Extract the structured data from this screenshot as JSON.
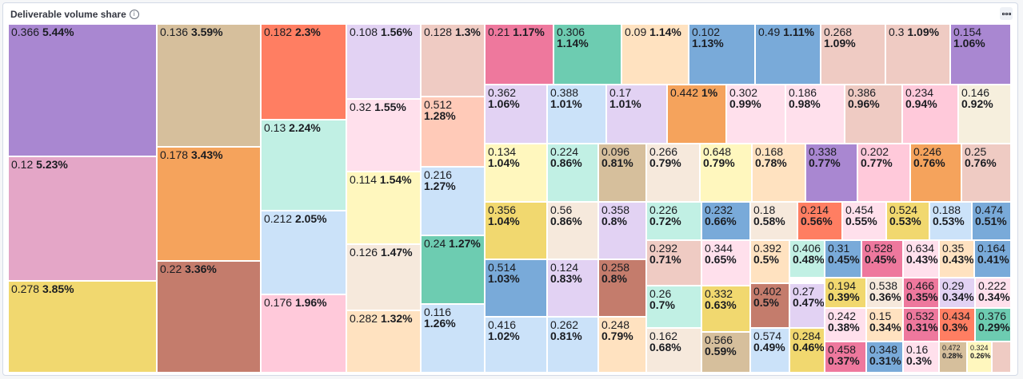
{
  "panel": {
    "title": "Deliverable volume share",
    "info_icon": "info-icon",
    "options_icon": "panel-options-icon"
  },
  "chart_data": {
    "type": "treemap",
    "title": "Deliverable volume share",
    "tiles": [
      {
        "value": "0.366",
        "pct": "5.44%",
        "color": "#a987d1"
      },
      {
        "value": "0.12",
        "pct": "5.23%",
        "color": "#e4a6c7"
      },
      {
        "value": "0.278",
        "pct": "3.85%",
        "color": "#f1d86f"
      },
      {
        "value": "0.136",
        "pct": "3.59%",
        "color": "#d6bf9c"
      },
      {
        "value": "0.178",
        "pct": "3.43%",
        "color": "#f5a35c"
      },
      {
        "value": "0.22",
        "pct": "3.36%",
        "color": "#c47c6c"
      },
      {
        "value": "0.182",
        "pct": "2.3%",
        "color": "#ff7e62"
      },
      {
        "value": "0.13",
        "pct": "2.24%",
        "color": "#c1f0e4"
      },
      {
        "value": "0.212",
        "pct": "2.05%",
        "color": "#cbe2f9"
      },
      {
        "value": "0.176",
        "pct": "1.96%",
        "color": "#ffc9da"
      },
      {
        "value": "0.108",
        "pct": "1.56%",
        "color": "#e2d2f3"
      },
      {
        "value": "0.32",
        "pct": "1.55%",
        "color": "#ffe0ec"
      },
      {
        "value": "0.114",
        "pct": "1.54%",
        "color": "#fff7be"
      },
      {
        "value": "0.126",
        "pct": "1.47%",
        "color": "#f6e9dc"
      },
      {
        "value": "0.282",
        "pct": "1.32%",
        "color": "#ffe2c0"
      },
      {
        "value": "0.128",
        "pct": "1.3%",
        "color": "#efcbc3"
      },
      {
        "value": "0.512",
        "pct": "1.28%",
        "color": "#ffcab8"
      },
      {
        "value": "0.216",
        "pct": "1.27%",
        "color": "#cbe2f9"
      },
      {
        "value": "0.24",
        "pct": "1.27%",
        "color": "#6dccb1"
      },
      {
        "value": "0.116",
        "pct": "1.26%",
        "color": "#cbe2f9"
      },
      {
        "value": "0.21",
        "pct": "1.17%",
        "color": "#ee789d"
      },
      {
        "value": "0.306",
        "pct": "1.14%",
        "color": "#6dccb1"
      },
      {
        "value": "0.09",
        "pct": "1.14%",
        "color": "#ffe2c0"
      },
      {
        "value": "0.102",
        "pct": "1.13%",
        "color": "#79aad9"
      },
      {
        "value": "0.49",
        "pct": "1.11%",
        "color": "#79aad9"
      },
      {
        "value": "0.268",
        "pct": "1.09%",
        "color": "#efcbc3"
      },
      {
        "value": "0.3",
        "pct": "1.09%",
        "color": "#efcbc3"
      },
      {
        "value": "0.154",
        "pct": "1.06%",
        "color": "#a987d1"
      },
      {
        "value": "0.362",
        "pct": "1.06%",
        "color": "#e2d2f3"
      },
      {
        "value": "0.388",
        "pct": "1.01%",
        "color": "#cbe2f9"
      },
      {
        "value": "0.17",
        "pct": "1.01%",
        "color": "#e2d2f3"
      },
      {
        "value": "0.442",
        "pct": "1%",
        "color": "#f5a35c"
      },
      {
        "value": "0.302",
        "pct": "0.99%",
        "color": "#ffe0ec"
      },
      {
        "value": "0.186",
        "pct": "0.98%",
        "color": "#ffe0ec"
      },
      {
        "value": "0.386",
        "pct": "0.96%",
        "color": "#efcbc3"
      },
      {
        "value": "0.234",
        "pct": "0.94%",
        "color": "#ffc9da"
      },
      {
        "value": "0.146",
        "pct": "0.92%",
        "color": "#f6efdd"
      },
      {
        "value": "0.134",
        "pct": "1.04%",
        "color": "#fff7be"
      },
      {
        "value": "0.224",
        "pct": "0.86%",
        "color": "#c1f0e4"
      },
      {
        "value": "0.096",
        "pct": "0.81%",
        "color": "#d6bf9c"
      },
      {
        "value": "0.266",
        "pct": "0.79%",
        "color": "#f6e9dc"
      },
      {
        "value": "0.648",
        "pct": "0.79%",
        "color": "#fff7be"
      },
      {
        "value": "0.168",
        "pct": "0.78%",
        "color": "#ffe2c0"
      },
      {
        "value": "0.338",
        "pct": "0.77%",
        "color": "#a987d1"
      },
      {
        "value": "0.202",
        "pct": "0.77%",
        "color": "#ffc9da"
      },
      {
        "value": "0.246",
        "pct": "0.76%",
        "color": "#f5a35c"
      },
      {
        "value": "0.25",
        "pct": "0.76%",
        "color": "#efcbc3"
      },
      {
        "value": "0.356",
        "pct": "1.04%",
        "color": "#f1d86f"
      },
      {
        "value": "0.56",
        "pct": "0.86%",
        "color": "#f6e9dc"
      },
      {
        "value": "0.358",
        "pct": "0.8%",
        "color": "#e2d2f3"
      },
      {
        "value": "0.226",
        "pct": "0.72%",
        "color": "#c1f0e4"
      },
      {
        "value": "0.232",
        "pct": "0.66%",
        "color": "#79aad9"
      },
      {
        "value": "0.18",
        "pct": "0.58%",
        "color": "#f6e9dc"
      },
      {
        "value": "0.214",
        "pct": "0.56%",
        "color": "#ff7e62"
      },
      {
        "value": "0.454",
        "pct": "0.55%",
        "color": "#ffe0ec"
      },
      {
        "value": "0.524",
        "pct": "0.53%",
        "color": "#f1d86f"
      },
      {
        "value": "0.188",
        "pct": "0.53%",
        "color": "#cbe2f9"
      },
      {
        "value": "0.474",
        "pct": "0.51%",
        "color": "#79aad9"
      },
      {
        "value": "0.514",
        "pct": "1.03%",
        "color": "#79aad9"
      },
      {
        "value": "0.124",
        "pct": "0.83%",
        "color": "#e2d2f3"
      },
      {
        "value": "0.258",
        "pct": "0.8%",
        "color": "#c47c6c"
      },
      {
        "value": "0.292",
        "pct": "0.71%",
        "color": "#efcbc3"
      },
      {
        "value": "0.344",
        "pct": "0.65%",
        "color": "#ffe0ec"
      },
      {
        "value": "0.392",
        "pct": "0.5%",
        "color": "#ffe2c0"
      },
      {
        "value": "0.406",
        "pct": "0.48%",
        "color": "#c1f0e4"
      },
      {
        "value": "0.31",
        "pct": "0.45%",
        "color": "#79aad9"
      },
      {
        "value": "0.528",
        "pct": "0.45%",
        "color": "#ee789d"
      },
      {
        "value": "0.634",
        "pct": "0.43%",
        "color": "#ffe0ec"
      },
      {
        "value": "0.35",
        "pct": "0.43%",
        "color": "#ffe2c0"
      },
      {
        "value": "0.164",
        "pct": "0.41%",
        "color": "#79aad9"
      },
      {
        "value": "0.416",
        "pct": "1.02%",
        "color": "#cbe2f9"
      },
      {
        "value": "0.262",
        "pct": "0.81%",
        "color": "#cbe2f9"
      },
      {
        "value": "0.248",
        "pct": "0.79%",
        "color": "#ffe2c0"
      },
      {
        "value": "0.26",
        "pct": "0.7%",
        "color": "#c1f0e4"
      },
      {
        "value": "0.332",
        "pct": "0.63%",
        "color": "#f1d86f"
      },
      {
        "value": "0.402",
        "pct": "0.5%",
        "color": "#c47c6c"
      },
      {
        "value": "0.27",
        "pct": "0.47%",
        "color": "#e2d2f3"
      },
      {
        "value": "0.194",
        "pct": "0.39%",
        "color": "#f1d86f"
      },
      {
        "value": "0.538",
        "pct": "0.36%",
        "color": "#f6e9dc"
      },
      {
        "value": "0.466",
        "pct": "0.35%",
        "color": "#ee789d"
      },
      {
        "value": "0.29",
        "pct": "0.34%",
        "color": "#e2d2f3"
      },
      {
        "value": "0.222",
        "pct": "0.34%",
        "color": "#ffe0ec"
      },
      {
        "value": "0.162",
        "pct": "0.68%",
        "color": "#f6e9dc"
      },
      {
        "value": "0.566",
        "pct": "0.59%",
        "color": "#d6bf9c"
      },
      {
        "value": "0.574",
        "pct": "0.49%",
        "color": "#cbe2f9"
      },
      {
        "value": "0.284",
        "pct": "0.46%",
        "color": "#f1d86f"
      },
      {
        "value": "0.242",
        "pct": "0.38%",
        "color": "#ffe0ec"
      },
      {
        "value": "0.15",
        "pct": "0.34%",
        "color": "#ffe2c0"
      },
      {
        "value": "0.532",
        "pct": "0.31%",
        "color": "#ee789d"
      },
      {
        "value": "0.434",
        "pct": "0.3%",
        "color": "#ff7e62"
      },
      {
        "value": "0.376",
        "pct": "0.29%",
        "color": "#6dccb1"
      },
      {
        "value": "0.458",
        "pct": "0.37%",
        "color": "#ee789d"
      },
      {
        "value": "0.348",
        "pct": "0.31%",
        "color": "#79aad9"
      },
      {
        "value": "0.16",
        "pct": "0.3%",
        "color": "#ffe0ec"
      },
      {
        "value": "0.472",
        "pct": "0.28%",
        "color": "#d6bf9c"
      },
      {
        "value": "0.324",
        "pct": "0.26%",
        "color": "#fff7be"
      },
      {
        "value": "",
        "pct": "",
        "color": "#efcbc3"
      }
    ]
  }
}
